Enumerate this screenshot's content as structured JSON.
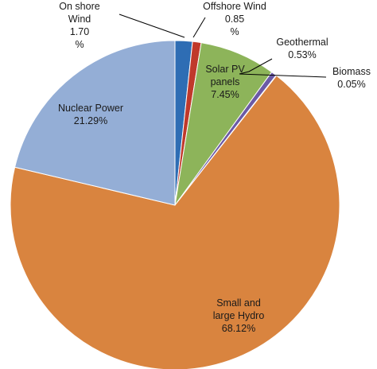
{
  "chart_data": {
    "type": "pie",
    "title": "",
    "slices": [
      {
        "label_lines": [
          "On shore",
          "Wind",
          "1.70",
          "%"
        ],
        "value": 1.7,
        "color": "#2e6db4"
      },
      {
        "label_lines": [
          "Offshore Wind",
          "0.85",
          "%"
        ],
        "value": 0.85,
        "color": "#c0392b"
      },
      {
        "label_lines": [
          "Solar PV",
          "panels",
          "7.45%"
        ],
        "value": 7.45,
        "color": "#8db45a"
      },
      {
        "label_lines": [
          "Geothermal",
          "0.53%"
        ],
        "value": 0.53,
        "color": "#6b5aa6"
      },
      {
        "label_lines": [
          "Biomass",
          "0.05%"
        ],
        "value": 0.05,
        "color": "#39a8c8"
      },
      {
        "label_lines": [
          "Small and",
          "large Hydro",
          "68.12%"
        ],
        "value": 68.12,
        "color": "#d9843f"
      },
      {
        "label_lines": [
          "Nuclear Power",
          "21.29%"
        ],
        "value": 21.29,
        "color": "#94aed6"
      }
    ],
    "start_angle_deg": 0,
    "direction": "clockwise",
    "legend": "none"
  }
}
